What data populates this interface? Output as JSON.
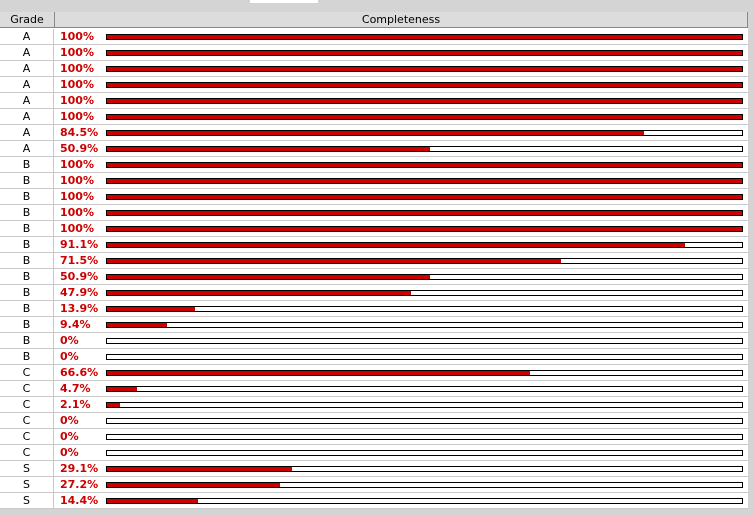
{
  "table": {
    "columns": [
      "Grade",
      "Completeness"
    ],
    "range": [
      0,
      100
    ],
    "rows": [
      {
        "grade": "A",
        "value": 100,
        "label": "100%"
      },
      {
        "grade": "A",
        "value": 100,
        "label": "100%"
      },
      {
        "grade": "A",
        "value": 100,
        "label": "100%"
      },
      {
        "grade": "A",
        "value": 100,
        "label": "100%"
      },
      {
        "grade": "A",
        "value": 100,
        "label": "100%"
      },
      {
        "grade": "A",
        "value": 100,
        "label": "100%"
      },
      {
        "grade": "A",
        "value": 84.5,
        "label": "84.5%"
      },
      {
        "grade": "A",
        "value": 50.9,
        "label": "50.9%"
      },
      {
        "grade": "B",
        "value": 100,
        "label": "100%"
      },
      {
        "grade": "B",
        "value": 100,
        "label": "100%"
      },
      {
        "grade": "B",
        "value": 100,
        "label": "100%"
      },
      {
        "grade": "B",
        "value": 100,
        "label": "100%"
      },
      {
        "grade": "B",
        "value": 100,
        "label": "100%"
      },
      {
        "grade": "B",
        "value": 91.1,
        "label": "91.1%"
      },
      {
        "grade": "B",
        "value": 71.5,
        "label": "71.5%"
      },
      {
        "grade": "B",
        "value": 50.9,
        "label": "50.9%"
      },
      {
        "grade": "B",
        "value": 47.9,
        "label": "47.9%"
      },
      {
        "grade": "B",
        "value": 13.9,
        "label": "13.9%"
      },
      {
        "grade": "B",
        "value": 9.4,
        "label": "9.4%"
      },
      {
        "grade": "B",
        "value": 0,
        "label": "0%"
      },
      {
        "grade": "B",
        "value": 0,
        "label": "0%"
      },
      {
        "grade": "C",
        "value": 66.6,
        "label": "66.6%"
      },
      {
        "grade": "C",
        "value": 4.7,
        "label": "4.7%"
      },
      {
        "grade": "C",
        "value": 2.1,
        "label": "2.1%"
      },
      {
        "grade": "C",
        "value": 0,
        "label": "0%"
      },
      {
        "grade": "C",
        "value": 0,
        "label": "0%"
      },
      {
        "grade": "C",
        "value": 0,
        "label": "0%"
      },
      {
        "grade": "S",
        "value": 29.1,
        "label": "29.1%"
      },
      {
        "grade": "S",
        "value": 27.2,
        "label": "27.2%"
      },
      {
        "grade": "S",
        "value": 14.4,
        "label": "14.4%"
      }
    ]
  }
}
